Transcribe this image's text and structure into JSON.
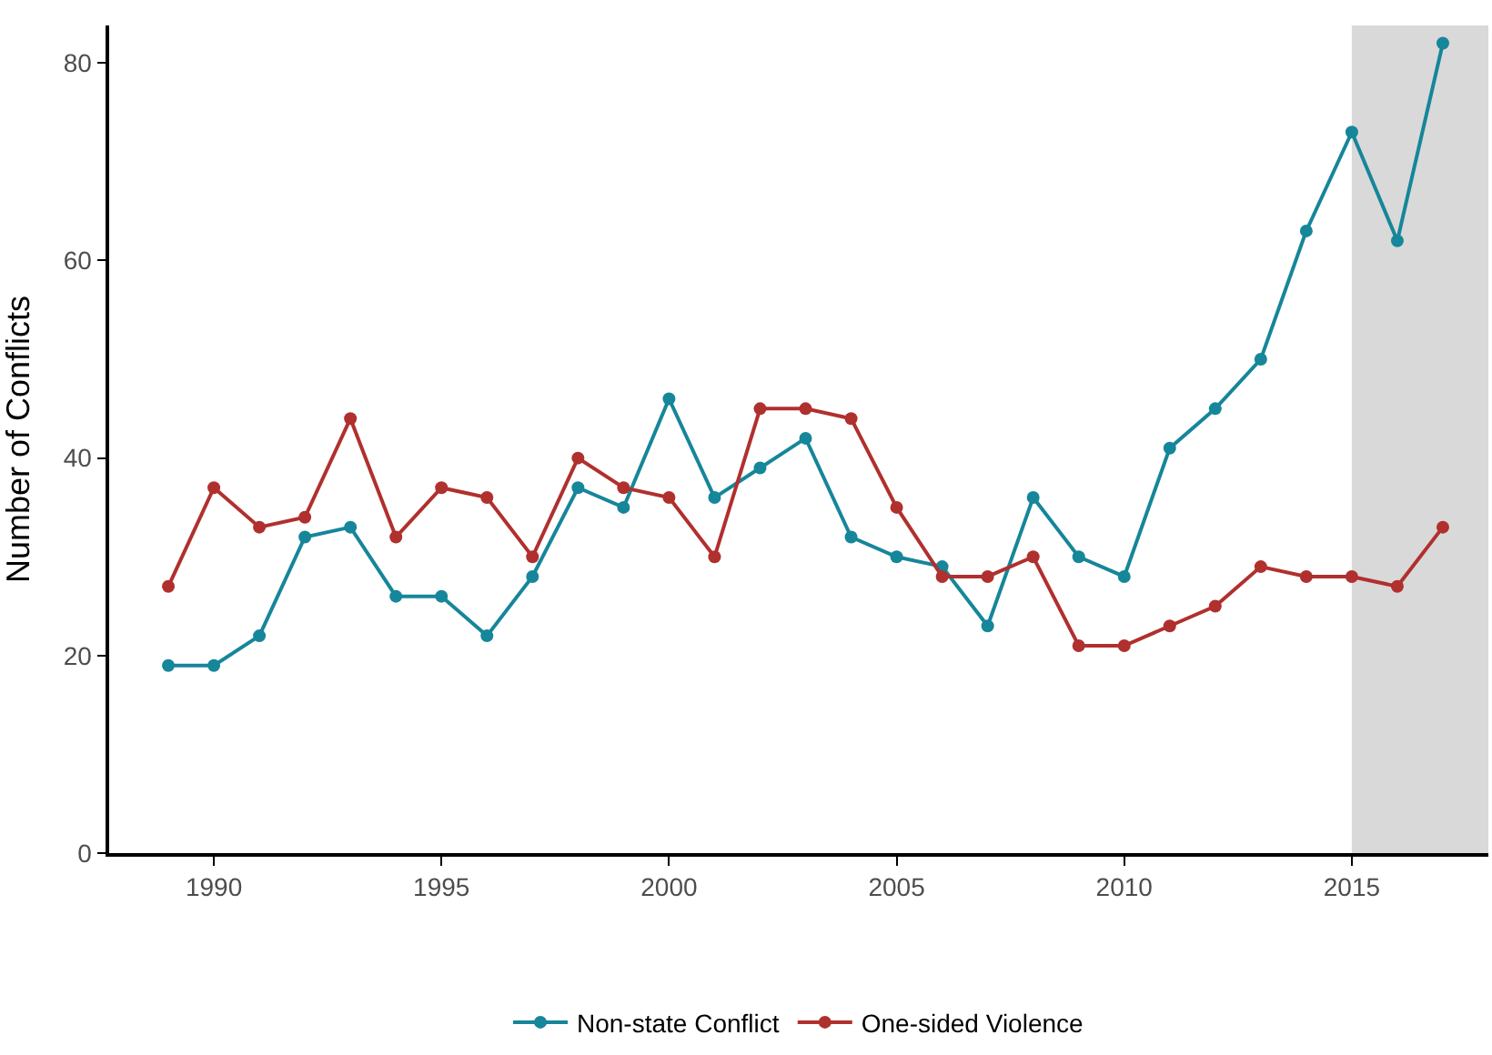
{
  "chart_data": {
    "type": "line",
    "ylabel": "Number of Conflicts",
    "x": [
      1989,
      1990,
      1991,
      1992,
      1993,
      1994,
      1995,
      1996,
      1997,
      1998,
      1999,
      2000,
      2001,
      2002,
      2003,
      2004,
      2005,
      2006,
      2007,
      2008,
      2009,
      2010,
      2011,
      2012,
      2013,
      2014,
      2015,
      2016,
      2017
    ],
    "series": [
      {
        "name": "Non-state Conflict",
        "color": "#16869a",
        "values": [
          19,
          19,
          22,
          32,
          33,
          26,
          26,
          22,
          28,
          37,
          35,
          46,
          36,
          39,
          42,
          32,
          30,
          29,
          23,
          36,
          30,
          28,
          41,
          45,
          50,
          63,
          73,
          62,
          82
        ]
      },
      {
        "name": "One-sided Violence",
        "color": "#b0302e",
        "values": [
          27,
          37,
          33,
          34,
          44,
          32,
          37,
          36,
          30,
          40,
          37,
          36,
          30,
          45,
          45,
          44,
          35,
          28,
          28,
          30,
          21,
          21,
          23,
          25,
          29,
          28,
          28,
          27,
          33
        ]
      }
    ],
    "xlim": [
      1987.7,
      2018
    ],
    "xticks": [
      1990,
      1995,
      2000,
      2005,
      2010,
      2015
    ],
    "ylim": [
      0,
      83.8
    ],
    "yticks": [
      0,
      20,
      40,
      60,
      80
    ],
    "bands": [
      {
        "axis": "x",
        "from": 2015,
        "to": 2018,
        "color": "#d9d9d9"
      }
    ],
    "grid": false,
    "legend": "bottom",
    "marker": "circle",
    "line_style": "solid"
  }
}
